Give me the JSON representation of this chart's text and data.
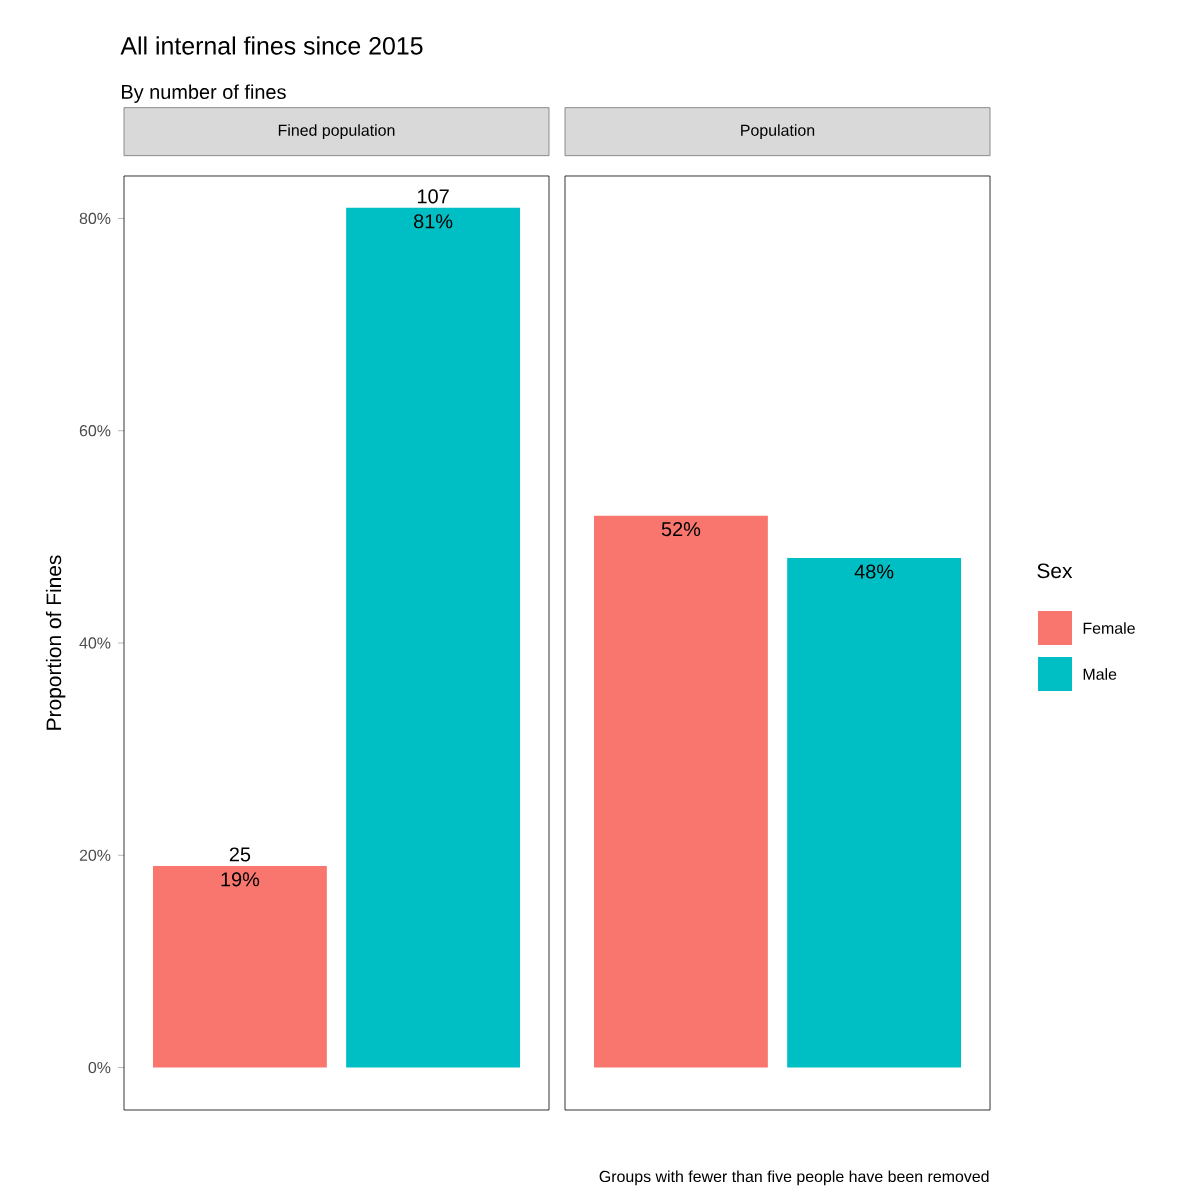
{
  "chart_data": {
    "type": "bar",
    "title": "All internal fines since 2015",
    "subtitle": "By number of fines",
    "ylabel": "Proportion of Fines",
    "legend_title": "Sex",
    "legend": "right",
    "categories": [
      "Fined population",
      "Population"
    ],
    "series": [
      {
        "name": "Female",
        "color": "#f8766d",
        "values": [
          19,
          52
        ],
        "value_labels": [
          "19%",
          "52%"
        ]
      },
      {
        "name": "Male",
        "color": "#00bfc4",
        "values": [
          81,
          48
        ],
        "value_labels": [
          "81%",
          "48%"
        ]
      }
    ],
    "ylim": [
      -4,
      84
    ],
    "yticks": [
      {
        "value": 0,
        "label": "0%"
      },
      {
        "value": 20,
        "label": "20%"
      },
      {
        "value": 40,
        "label": "40%"
      },
      {
        "value": 60,
        "label": "60%"
      },
      {
        "value": 80,
        "label": "80%"
      }
    ],
    "annotations": [
      "25",
      "107",
      "Groups with fewer than five people have been removed"
    ]
  }
}
